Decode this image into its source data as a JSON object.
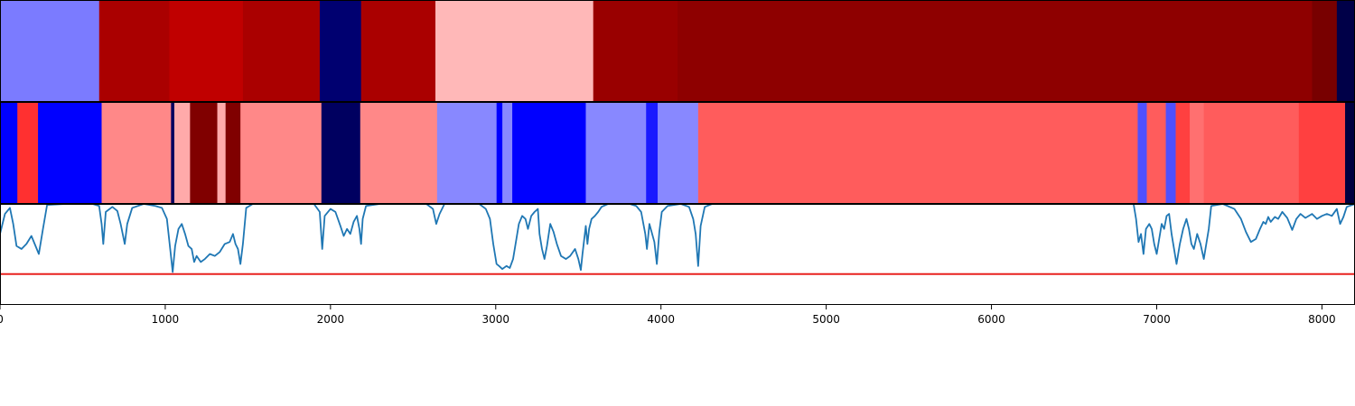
{
  "chart_data": {
    "type": "heatmap",
    "xlim": [
      0,
      8200
    ],
    "xticks": [
      0,
      1000,
      2000,
      3000,
      4000,
      5000,
      6000,
      7000,
      8000
    ],
    "tick_labels": [
      "0",
      "1000",
      "2000",
      "3000",
      "4000",
      "5000",
      "6000",
      "7000",
      "8000"
    ],
    "track1_segments": [
      {
        "start": 0,
        "end": 600,
        "color": "#7b7bff"
      },
      {
        "start": 600,
        "end": 1025,
        "color": "#aa0000"
      },
      {
        "start": 1025,
        "end": 1470,
        "color": "#c00000"
      },
      {
        "start": 1470,
        "end": 1935,
        "color": "#aa0000"
      },
      {
        "start": 1935,
        "end": 2185,
        "color": "#000070"
      },
      {
        "start": 2185,
        "end": 2635,
        "color": "#aa0000"
      },
      {
        "start": 2635,
        "end": 3590,
        "color": "#ffb8b8"
      },
      {
        "start": 3590,
        "end": 4100,
        "color": "#990000"
      },
      {
        "start": 4100,
        "end": 7940,
        "color": "#8e0000"
      },
      {
        "start": 7940,
        "end": 8090,
        "color": "#780000"
      },
      {
        "start": 8090,
        "end": 8200,
        "color": "#000048"
      }
    ],
    "track2_segments": [
      {
        "start": 0,
        "end": 105,
        "color": "#0000ff"
      },
      {
        "start": 105,
        "end": 230,
        "color": "#ff3030"
      },
      {
        "start": 230,
        "end": 615,
        "color": "#0000ff"
      },
      {
        "start": 615,
        "end": 1035,
        "color": "#ff8888"
      },
      {
        "start": 1035,
        "end": 1055,
        "color": "#000060"
      },
      {
        "start": 1055,
        "end": 1150,
        "color": "#ffaaaa"
      },
      {
        "start": 1150,
        "end": 1315,
        "color": "#800000"
      },
      {
        "start": 1315,
        "end": 1365,
        "color": "#ffaaaa"
      },
      {
        "start": 1365,
        "end": 1455,
        "color": "#800000"
      },
      {
        "start": 1455,
        "end": 1945,
        "color": "#ff8888"
      },
      {
        "start": 1945,
        "end": 2180,
        "color": "#000060"
      },
      {
        "start": 2180,
        "end": 2645,
        "color": "#ff8888"
      },
      {
        "start": 2645,
        "end": 3005,
        "color": "#8888ff"
      },
      {
        "start": 3005,
        "end": 3040,
        "color": "#0000ff"
      },
      {
        "start": 3040,
        "end": 3100,
        "color": "#8888ff"
      },
      {
        "start": 3100,
        "end": 3545,
        "color": "#0000ff"
      },
      {
        "start": 3545,
        "end": 3910,
        "color": "#8888ff"
      },
      {
        "start": 3910,
        "end": 3980,
        "color": "#1a1aff"
      },
      {
        "start": 3980,
        "end": 4225,
        "color": "#8888ff"
      },
      {
        "start": 4225,
        "end": 6885,
        "color": "#ff5c5c"
      },
      {
        "start": 6885,
        "end": 6940,
        "color": "#5050ff"
      },
      {
        "start": 6940,
        "end": 7055,
        "color": "#ff5c5c"
      },
      {
        "start": 7055,
        "end": 7115,
        "color": "#5050ff"
      },
      {
        "start": 7115,
        "end": 7200,
        "color": "#ff4040"
      },
      {
        "start": 7200,
        "end": 7285,
        "color": "#ff7070"
      },
      {
        "start": 7285,
        "end": 7860,
        "color": "#ff5c5c"
      },
      {
        "start": 7860,
        "end": 8140,
        "color": "#ff4040"
      },
      {
        "start": 8140,
        "end": 8200,
        "color": "#000040"
      }
    ],
    "track3_ylim": [
      0,
      1
    ],
    "threshold": 0.3,
    "threshold_color": "#e8211f",
    "line_color": "#1f77b4",
    "line_points": [
      [
        0,
        0.7
      ],
      [
        30,
        0.9
      ],
      [
        60,
        0.96
      ],
      [
        80,
        0.8
      ],
      [
        100,
        0.58
      ],
      [
        130,
        0.55
      ],
      [
        160,
        0.6
      ],
      [
        190,
        0.68
      ],
      [
        210,
        0.6
      ],
      [
        235,
        0.5
      ],
      [
        260,
        0.75
      ],
      [
        285,
        0.99
      ],
      [
        400,
        1.0
      ],
      [
        560,
        1.0
      ],
      [
        600,
        0.98
      ],
      [
        615,
        0.8
      ],
      [
        625,
        0.6
      ],
      [
        640,
        0.92
      ],
      [
        680,
        0.97
      ],
      [
        710,
        0.93
      ],
      [
        730,
        0.8
      ],
      [
        755,
        0.6
      ],
      [
        770,
        0.8
      ],
      [
        800,
        0.96
      ],
      [
        870,
        1.0
      ],
      [
        940,
        0.98
      ],
      [
        980,
        0.96
      ],
      [
        1010,
        0.85
      ],
      [
        1030,
        0.55
      ],
      [
        1045,
        0.32
      ],
      [
        1060,
        0.58
      ],
      [
        1080,
        0.75
      ],
      [
        1100,
        0.8
      ],
      [
        1120,
        0.7
      ],
      [
        1140,
        0.58
      ],
      [
        1160,
        0.55
      ],
      [
        1175,
        0.42
      ],
      [
        1190,
        0.48
      ],
      [
        1215,
        0.42
      ],
      [
        1240,
        0.45
      ],
      [
        1270,
        0.5
      ],
      [
        1300,
        0.48
      ],
      [
        1330,
        0.52
      ],
      [
        1360,
        0.6
      ],
      [
        1390,
        0.62
      ],
      [
        1410,
        0.7
      ],
      [
        1425,
        0.6
      ],
      [
        1440,
        0.55
      ],
      [
        1455,
        0.4
      ],
      [
        1470,
        0.6
      ],
      [
        1490,
        0.96
      ],
      [
        1530,
        1.0
      ],
      [
        1900,
        1.0
      ],
      [
        1935,
        0.92
      ],
      [
        1950,
        0.55
      ],
      [
        1965,
        0.88
      ],
      [
        2000,
        0.95
      ],
      [
        2030,
        0.92
      ],
      [
        2060,
        0.78
      ],
      [
        2080,
        0.68
      ],
      [
        2100,
        0.75
      ],
      [
        2120,
        0.7
      ],
      [
        2140,
        0.82
      ],
      [
        2160,
        0.88
      ],
      [
        2175,
        0.75
      ],
      [
        2185,
        0.6
      ],
      [
        2195,
        0.85
      ],
      [
        2215,
        0.98
      ],
      [
        2300,
        1.0
      ],
      [
        2580,
        1.0
      ],
      [
        2620,
        0.95
      ],
      [
        2640,
        0.8
      ],
      [
        2660,
        0.9
      ],
      [
        2690,
        1.0
      ],
      [
        2900,
        1.0
      ],
      [
        2940,
        0.95
      ],
      [
        2965,
        0.85
      ],
      [
        2985,
        0.6
      ],
      [
        3005,
        0.4
      ],
      [
        3020,
        0.38
      ],
      [
        3040,
        0.35
      ],
      [
        3065,
        0.38
      ],
      [
        3085,
        0.36
      ],
      [
        3105,
        0.45
      ],
      [
        3125,
        0.65
      ],
      [
        3140,
        0.8
      ],
      [
        3160,
        0.88
      ],
      [
        3180,
        0.85
      ],
      [
        3195,
        0.75
      ],
      [
        3215,
        0.88
      ],
      [
        3235,
        0.92
      ],
      [
        3255,
        0.95
      ],
      [
        3265,
        0.7
      ],
      [
        3280,
        0.55
      ],
      [
        3295,
        0.45
      ],
      [
        3310,
        0.58
      ],
      [
        3330,
        0.8
      ],
      [
        3350,
        0.72
      ],
      [
        3370,
        0.6
      ],
      [
        3395,
        0.48
      ],
      [
        3425,
        0.45
      ],
      [
        3450,
        0.48
      ],
      [
        3480,
        0.55
      ],
      [
        3500,
        0.45
      ],
      [
        3515,
        0.34
      ],
      [
        3525,
        0.5
      ],
      [
        3545,
        0.78
      ],
      [
        3555,
        0.6
      ],
      [
        3565,
        0.75
      ],
      [
        3580,
        0.85
      ],
      [
        3600,
        0.88
      ],
      [
        3620,
        0.92
      ],
      [
        3640,
        0.97
      ],
      [
        3680,
        1.0
      ],
      [
        3810,
        1.0
      ],
      [
        3850,
        0.98
      ],
      [
        3880,
        0.92
      ],
      [
        3905,
        0.7
      ],
      [
        3915,
        0.55
      ],
      [
        3930,
        0.8
      ],
      [
        3960,
        0.62
      ],
      [
        3975,
        0.4
      ],
      [
        3990,
        0.72
      ],
      [
        4005,
        0.92
      ],
      [
        4040,
        0.98
      ],
      [
        4120,
        1.0
      ],
      [
        4170,
        0.97
      ],
      [
        4195,
        0.85
      ],
      [
        4210,
        0.7
      ],
      [
        4225,
        0.38
      ],
      [
        4240,
        0.78
      ],
      [
        4265,
        0.97
      ],
      [
        4310,
        1.0
      ],
      [
        6860,
        1.0
      ],
      [
        6875,
        0.85
      ],
      [
        6890,
        0.62
      ],
      [
        6905,
        0.7
      ],
      [
        6920,
        0.5
      ],
      [
        6935,
        0.75
      ],
      [
        6955,
        0.8
      ],
      [
        6970,
        0.75
      ],
      [
        6985,
        0.6
      ],
      [
        7000,
        0.5
      ],
      [
        7015,
        0.65
      ],
      [
        7030,
        0.8
      ],
      [
        7045,
        0.75
      ],
      [
        7060,
        0.88
      ],
      [
        7075,
        0.9
      ],
      [
        7090,
        0.7
      ],
      [
        7105,
        0.55
      ],
      [
        7120,
        0.4
      ],
      [
        7140,
        0.6
      ],
      [
        7160,
        0.75
      ],
      [
        7180,
        0.85
      ],
      [
        7195,
        0.75
      ],
      [
        7210,
        0.6
      ],
      [
        7225,
        0.55
      ],
      [
        7245,
        0.7
      ],
      [
        7265,
        0.6
      ],
      [
        7285,
        0.45
      ],
      [
        7300,
        0.6
      ],
      [
        7315,
        0.75
      ],
      [
        7330,
        0.98
      ],
      [
        7400,
        1.0
      ],
      [
        7470,
        0.95
      ],
      [
        7510,
        0.85
      ],
      [
        7540,
        0.72
      ],
      [
        7570,
        0.62
      ],
      [
        7600,
        0.65
      ],
      [
        7625,
        0.75
      ],
      [
        7645,
        0.82
      ],
      [
        7660,
        0.8
      ],
      [
        7675,
        0.87
      ],
      [
        7690,
        0.82
      ],
      [
        7715,
        0.87
      ],
      [
        7735,
        0.85
      ],
      [
        7760,
        0.92
      ],
      [
        7790,
        0.86
      ],
      [
        7820,
        0.74
      ],
      [
        7845,
        0.85
      ],
      [
        7870,
        0.9
      ],
      [
        7900,
        0.86
      ],
      [
        7940,
        0.9
      ],
      [
        7970,
        0.85
      ],
      [
        8000,
        0.88
      ],
      [
        8030,
        0.9
      ],
      [
        8060,
        0.88
      ],
      [
        8090,
        0.95
      ],
      [
        8110,
        0.8
      ],
      [
        8130,
        0.87
      ],
      [
        8150,
        0.97
      ],
      [
        8200,
        1.0
      ]
    ]
  }
}
